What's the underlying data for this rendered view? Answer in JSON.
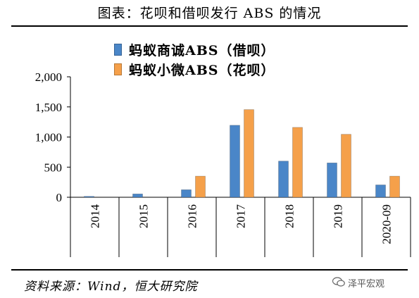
{
  "page_title": "图表：花呗和借呗发行 ABS 的情况",
  "source": "资料来源：Wind，恒大研究院",
  "watermark": "泽平宏观",
  "watermark_icon": "wechat-icon",
  "colors": {
    "series0": "#4a86c8",
    "series1": "#f5a04a"
  },
  "chart_data": {
    "type": "bar",
    "categories": [
      "2014",
      "2015",
      "2016",
      "2017",
      "2018",
      "2019",
      "2020-09"
    ],
    "series": [
      {
        "name": "蚂蚁商诚ABS（借呗）",
        "values": [
          15,
          55,
          125,
          1195,
          600,
          570,
          205
        ]
      },
      {
        "name": "蚂蚁小微ABS（花呗）",
        "values": [
          0,
          0,
          350,
          1455,
          1160,
          1045,
          350
        ]
      }
    ],
    "ylim": [
      0,
      2000
    ],
    "yticks": [
      "0",
      "500",
      "1,000",
      "1,500",
      "2,000"
    ],
    "ytick_values": [
      0,
      500,
      1000,
      1500,
      2000
    ],
    "grid": false,
    "legend_position": "top"
  }
}
